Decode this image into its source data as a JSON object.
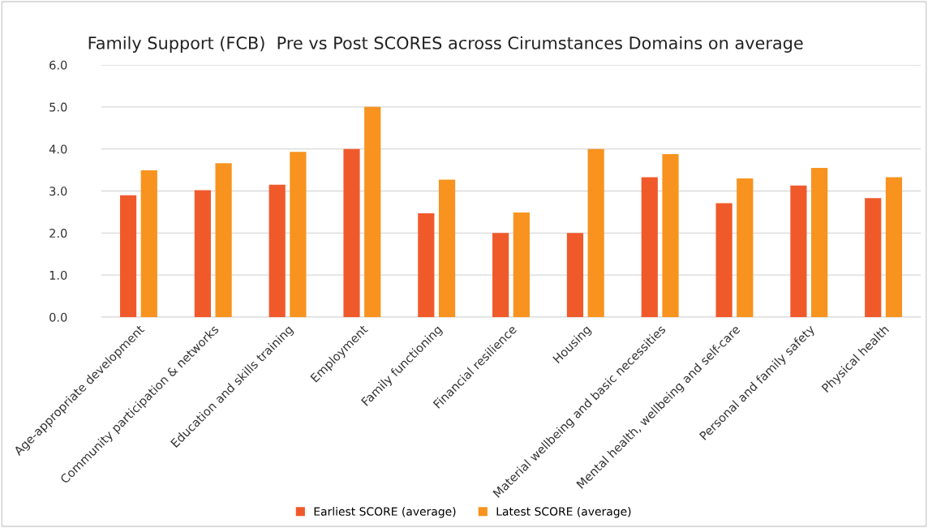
{
  "chart_data": {
    "type": "bar",
    "title": "Family Support (FCB)  Pre vs Post SCORES across Cirumstances Domains on average",
    "categories": [
      "Age-appropriate development",
      "Community participation & networks",
      "Education and skills training",
      "Employment",
      "Family functioning",
      "Financial resilience",
      "Housing",
      "Material wellbeing and basic necessities",
      "Mental health, wellbeing and self-care",
      "Personal and family safety",
      "Physical health"
    ],
    "series": [
      {
        "name": "Earliest SCORE (average)",
        "color": "#f05a2b",
        "values": [
          2.9,
          3.02,
          3.15,
          4.0,
          2.47,
          2.0,
          2.0,
          3.33,
          2.71,
          3.13,
          2.83
        ]
      },
      {
        "name": "Latest SCORE (average)",
        "color": "#f7931e",
        "values": [
          3.49,
          3.66,
          3.93,
          5.0,
          3.27,
          2.49,
          4.0,
          3.88,
          3.3,
          3.55,
          3.33
        ]
      }
    ],
    "ylim": [
      0,
      6
    ],
    "yticks": [
      {
        "value": 0,
        "label": "0.0"
      },
      {
        "value": 1,
        "label": "1.0"
      },
      {
        "value": 2,
        "label": "2.0"
      },
      {
        "value": 3,
        "label": "3.0"
      },
      {
        "value": 4,
        "label": "4.0"
      },
      {
        "value": 5,
        "label": "5.0"
      },
      {
        "value": 6,
        "label": "6.0"
      }
    ],
    "grid": "y",
    "legend": "bottom"
  }
}
